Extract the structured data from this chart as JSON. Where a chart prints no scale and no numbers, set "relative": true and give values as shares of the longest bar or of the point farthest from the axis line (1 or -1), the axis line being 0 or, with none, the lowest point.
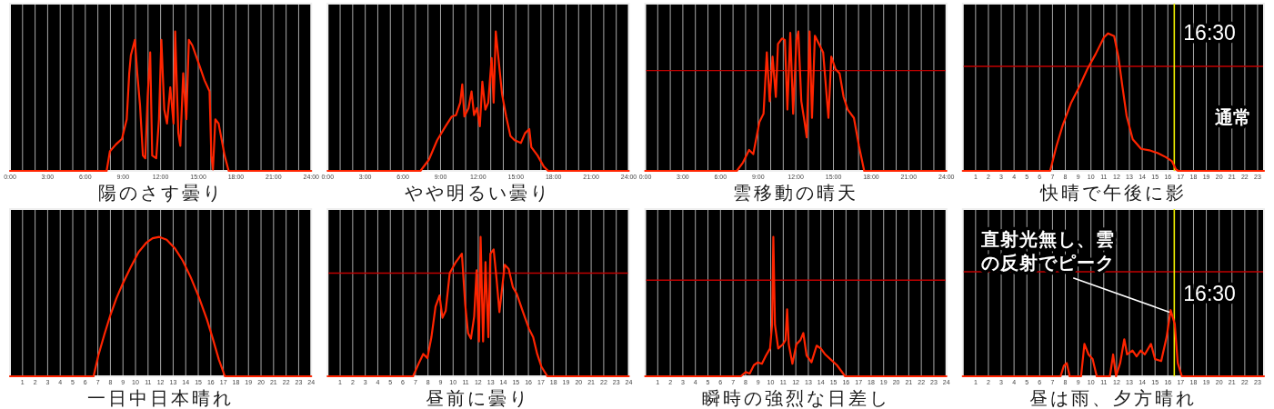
{
  "chart_data": [
    {
      "type": "line",
      "title": "陽のさす曇り",
      "relative": true,
      "color": "#ff2400",
      "x": [
        0,
        7.7,
        7.96,
        8.44,
        8.92,
        9.3,
        9.5,
        9.63,
        9.95,
        10.14,
        10.36,
        10.59,
        10.78,
        10.97,
        11.17,
        11.33,
        11.65,
        11.87,
        12.06,
        12.29,
        12.51,
        12.77,
        13.03,
        13.16,
        13.41,
        13.57,
        13.8,
        14.05,
        14.25,
        14.53,
        15.0,
        15.5,
        15.9,
        16.04,
        16.17,
        16.36,
        16.62,
        17.1,
        17.42,
        24
      ],
      "values": [
        0,
        0,
        0.14,
        0.19,
        0.23,
        0.37,
        0.7,
        0.83,
        0.94,
        0.7,
        0.47,
        0.11,
        0.09,
        0.54,
        0.85,
        0.11,
        0.09,
        0.37,
        0.94,
        0.44,
        0.34,
        0.6,
        0.34,
        1.0,
        0.27,
        0.18,
        0.7,
        0.37,
        0.94,
        0.9,
        0.78,
        0.65,
        0.57,
        0.11,
        0.01,
        0.37,
        0.34,
        0.11,
        0,
        0
      ],
      "xlim": [
        0,
        24
      ],
      "xticks": [
        {
          "value": 0,
          "label": "0:00"
        },
        {
          "value": 1,
          "label": null
        },
        {
          "value": 2,
          "label": null
        },
        {
          "value": 3,
          "label": "3:00"
        },
        {
          "value": 4,
          "label": null
        },
        {
          "value": 5,
          "label": null
        },
        {
          "value": 6,
          "label": "6:00"
        },
        {
          "value": 7,
          "label": null
        },
        {
          "value": 8,
          "label": null
        },
        {
          "value": 9,
          "label": "9:00"
        },
        {
          "value": 10,
          "label": null
        },
        {
          "value": 11,
          "label": null
        },
        {
          "value": 12,
          "label": "12:00"
        },
        {
          "value": 13,
          "label": null
        },
        {
          "value": 14,
          "label": null
        },
        {
          "value": 15,
          "label": "15:00"
        },
        {
          "value": 16,
          "label": null
        },
        {
          "value": 17,
          "label": null
        },
        {
          "value": 18,
          "label": "18:00"
        },
        {
          "value": 19,
          "label": null
        },
        {
          "value": 20,
          "label": null
        },
        {
          "value": 21,
          "label": "21:00"
        },
        {
          "value": 22,
          "label": null
        },
        {
          "value": 23,
          "label": null
        },
        {
          "value": 24,
          "label": "24:00"
        }
      ],
      "tick_labels": "x",
      "grid": "x"
    },
    {
      "type": "line",
      "title": "やや明るい曇り",
      "relative": true,
      "color": "#ff2400",
      "x": [
        0,
        7.4,
        8.07,
        8.73,
        9.4,
        9.9,
        10.23,
        10.57,
        10.73,
        10.9,
        11.23,
        11.47,
        11.67,
        11.9,
        12.13,
        12.33,
        12.57,
        12.8,
        13.07,
        13.23,
        13.4,
        13.6,
        13.9,
        14.23,
        14.57,
        14.9,
        15.4,
        15.73,
        16.07,
        16.23,
        16.73,
        17.23,
        17.57,
        24
      ],
      "values": [
        0,
        0,
        0.08,
        0.22,
        0.32,
        0.39,
        0.4,
        0.49,
        0.62,
        0.39,
        0.45,
        0.57,
        0.4,
        0.45,
        0.32,
        0.64,
        0.44,
        0.49,
        0.81,
        0.49,
        1.0,
        0.82,
        0.55,
        0.39,
        0.25,
        0.22,
        0.2,
        0.27,
        0.3,
        0.17,
        0.11,
        0.03,
        0,
        0
      ],
      "xlim": [
        0,
        24
      ],
      "xticks": [
        {
          "value": 0,
          "label": "0:00"
        },
        {
          "value": 1,
          "label": null
        },
        {
          "value": 2,
          "label": null
        },
        {
          "value": 3,
          "label": "3:00"
        },
        {
          "value": 4,
          "label": null
        },
        {
          "value": 5,
          "label": null
        },
        {
          "value": 6,
          "label": "6:00"
        },
        {
          "value": 7,
          "label": null
        },
        {
          "value": 8,
          "label": null
        },
        {
          "value": 9,
          "label": "9:00"
        },
        {
          "value": 10,
          "label": null
        },
        {
          "value": 11,
          "label": null
        },
        {
          "value": 12,
          "label": "12:00"
        },
        {
          "value": 13,
          "label": null
        },
        {
          "value": 14,
          "label": null
        },
        {
          "value": 15,
          "label": "15:00"
        },
        {
          "value": 16,
          "label": null
        },
        {
          "value": 17,
          "label": null
        },
        {
          "value": 18,
          "label": "18:00"
        },
        {
          "value": 19,
          "label": null
        },
        {
          "value": 20,
          "label": null
        },
        {
          "value": 21,
          "label": "21:00"
        },
        {
          "value": 22,
          "label": null
        },
        {
          "value": 23,
          "label": null
        },
        {
          "value": 24,
          "label": "24:00"
        }
      ],
      "tick_labels": "x",
      "grid": "x"
    },
    {
      "type": "line",
      "title": "雲移動の晴天",
      "relative": true,
      "color": "#ff2400",
      "x": [
        0,
        7.3,
        7.79,
        8.28,
        8.61,
        9.1,
        9.43,
        9.69,
        9.92,
        10.15,
        10.41,
        10.58,
        10.9,
        11.13,
        11.33,
        11.56,
        11.79,
        12.05,
        12.2,
        12.44,
        12.7,
        12.87,
        13.1,
        13.29,
        13.52,
        13.85,
        14.18,
        14.6,
        14.83,
        15.16,
        15.49,
        15.81,
        16.14,
        16.63,
        17.03,
        17.45,
        24
      ],
      "values": [
        0,
        0,
        0.06,
        0.15,
        0.12,
        0.35,
        0.41,
        0.85,
        0.5,
        0.82,
        0.53,
        0.91,
        0.95,
        0.94,
        0.44,
        0.99,
        0.41,
        0.94,
        1.0,
        0.5,
        0.35,
        0.24,
        1.0,
        0.38,
        0.97,
        0.91,
        0.85,
        0.38,
        0.82,
        0.73,
        0.7,
        0.53,
        0.44,
        0.38,
        0.18,
        0,
        0
      ],
      "xlim": [
        0,
        24
      ],
      "xticks": [
        {
          "value": 0,
          "label": "0:00"
        },
        {
          "value": 1,
          "label": null
        },
        {
          "value": 2,
          "label": null
        },
        {
          "value": 3,
          "label": "3:00"
        },
        {
          "value": 4,
          "label": null
        },
        {
          "value": 5,
          "label": null
        },
        {
          "value": 6,
          "label": "6:00"
        },
        {
          "value": 7,
          "label": null
        },
        {
          "value": 8,
          "label": null
        },
        {
          "value": 9,
          "label": "9:00"
        },
        {
          "value": 10,
          "label": null
        },
        {
          "value": 11,
          "label": null
        },
        {
          "value": 12,
          "label": "12:00"
        },
        {
          "value": 13,
          "label": null
        },
        {
          "value": 14,
          "label": null
        },
        {
          "value": 15,
          "label": "15:00"
        },
        {
          "value": 16,
          "label": null
        },
        {
          "value": 17,
          "label": null
        },
        {
          "value": 18,
          "label": "18:00"
        },
        {
          "value": 19,
          "label": null
        },
        {
          "value": 20,
          "label": null
        },
        {
          "value": 21,
          "label": "21:00"
        },
        {
          "value": 22,
          "label": null
        },
        {
          "value": 23,
          "label": null
        },
        {
          "value": 24,
          "label": "24:00"
        }
      ],
      "tick_labels": "x",
      "grid": "x",
      "ref_lines": [
        {
          "axis": "y",
          "value": 0.72,
          "color": "#c00000"
        }
      ]
    },
    {
      "type": "line",
      "title": "快晴で午後に影",
      "relative": true,
      "color": "#ff2400",
      "x": [
        0,
        6.82,
        7.31,
        7.79,
        8.43,
        9.08,
        9.72,
        10.37,
        11.01,
        11.33,
        11.81,
        12.14,
        12.46,
        12.78,
        13.26,
        13.91,
        14.55,
        15.19,
        15.84,
        16.32,
        16.64,
        16.8,
        23.5
      ],
      "values": [
        0,
        0,
        0.18,
        0.33,
        0.49,
        0.61,
        0.74,
        0.85,
        0.97,
        1.0,
        0.98,
        0.83,
        0.61,
        0.4,
        0.23,
        0.16,
        0.15,
        0.13,
        0.1,
        0.07,
        0.01,
        0,
        0
      ],
      "xlim": [
        0,
        23.5
      ],
      "xticks": [
        1,
        2,
        3,
        4,
        5,
        6,
        7,
        8,
        9,
        10,
        11,
        12,
        13,
        14,
        15,
        16,
        17,
        18,
        19,
        20,
        21,
        22,
        23
      ],
      "tick_labels": "x",
      "grid": "x",
      "ref_lines": [
        {
          "axis": "y",
          "value": 0.76,
          "color": "#c00000"
        },
        {
          "axis": "x",
          "value": 16.5,
          "label": "16:30",
          "color": "#f0f000"
        }
      ],
      "annotations": [
        "通常"
      ]
    },
    {
      "type": "line",
      "title": "一日中日本晴れ",
      "relative": true,
      "color": "#ff2400",
      "x": [
        0,
        6.66,
        7.04,
        7.52,
        8.0,
        8.48,
        8.96,
        9.6,
        10.24,
        10.88,
        11.36,
        11.9,
        12.48,
        13.12,
        13.76,
        14.4,
        15.04,
        15.68,
        16.16,
        16.64,
        17.12,
        24
      ],
      "values": [
        0,
        0,
        0.15,
        0.3,
        0.44,
        0.56,
        0.66,
        0.78,
        0.89,
        0.96,
        0.99,
        1.0,
        0.98,
        0.92,
        0.83,
        0.71,
        0.57,
        0.41,
        0.27,
        0.12,
        0,
        0
      ],
      "xlim": [
        0,
        24
      ],
      "xticks": [
        1,
        2,
        3,
        4,
        5,
        6,
        7,
        8,
        9,
        10,
        11,
        12,
        13,
        14,
        15,
        16,
        17,
        18,
        19,
        20,
        21,
        22,
        23,
        24
      ],
      "tick_labels": "x",
      "grid": "x"
    },
    {
      "type": "line",
      "title": "昼前に曇り",
      "relative": true,
      "color": "#ff2400",
      "x": [
        0,
        6.81,
        7.3,
        7.62,
        7.95,
        8.27,
        8.6,
        8.92,
        9.15,
        9.41,
        9.73,
        10.22,
        10.7,
        10.96,
        11.19,
        11.42,
        11.68,
        11.87,
        12.06,
        12.19,
        12.39,
        12.58,
        12.81,
        12.97,
        13.23,
        13.46,
        13.69,
        13.95,
        14.11,
        14.43,
        14.76,
        15.08,
        15.57,
        16.05,
        16.38,
        16.7,
        17.03,
        17.51,
        24
      ],
      "values": [
        0,
        0,
        0.1,
        0.16,
        0.13,
        0.28,
        0.5,
        0.58,
        0.42,
        0.47,
        0.74,
        0.82,
        0.88,
        0.52,
        0.31,
        0.27,
        0.43,
        0.76,
        0.25,
        1.0,
        0.25,
        0.82,
        0.28,
        0.88,
        0.91,
        0.7,
        0.46,
        0.67,
        0.8,
        0.77,
        0.64,
        0.59,
        0.46,
        0.34,
        0.28,
        0.16,
        0.07,
        0,
        0
      ],
      "xlim": [
        0,
        24
      ],
      "xticks": [
        1,
        2,
        3,
        4,
        5,
        6,
        7,
        8,
        9,
        10,
        11,
        12,
        13,
        14,
        15,
        16,
        17,
        18,
        19,
        20,
        21,
        22,
        23,
        24
      ],
      "tick_labels": "x",
      "grid": "x",
      "ref_lines": [
        {
          "axis": "y",
          "value": 0.74,
          "color": "#c00000"
        }
      ]
    },
    {
      "type": "line",
      "title": "瞬時の強烈な日差し",
      "relative": true,
      "color": "#ff2400",
      "x": [
        0,
        7.62,
        8.01,
        8.33,
        8.66,
        8.98,
        9.3,
        9.63,
        9.95,
        10.11,
        10.21,
        10.34,
        10.6,
        10.98,
        11.18,
        11.31,
        11.44,
        11.73,
        12.05,
        12.37,
        12.6,
        12.86,
        13.25,
        13.66,
        13.99,
        14.31,
        14.79,
        15.28,
        15.93,
        24
      ],
      "values": [
        0,
        0,
        0.03,
        0.02,
        0.08,
        0.1,
        0.09,
        0.15,
        0.2,
        0.37,
        1.0,
        0.37,
        0.2,
        0.23,
        0.26,
        0.48,
        0.23,
        0.09,
        0.23,
        0.26,
        0.31,
        0.15,
        0.1,
        0.22,
        0.2,
        0.16,
        0.12,
        0.08,
        0,
        0
      ],
      "xlim": [
        0,
        24
      ],
      "xticks": [
        1,
        2,
        3,
        4,
        5,
        6,
        7,
        8,
        9,
        10,
        11,
        12,
        13,
        14,
        15,
        16,
        17,
        18,
        19,
        20,
        21,
        22,
        23,
        24
      ],
      "tick_labels": "x",
      "grid": "x",
      "ref_lines": [
        {
          "axis": "y",
          "value": 0.69,
          "color": "#c00000"
        }
      ]
    },
    {
      "type": "line",
      "title": "昼は雨、夕方晴れ",
      "relative": true,
      "color": "#ff2400",
      "x": [
        0,
        7.63,
        7.89,
        8.11,
        8.34,
        9.23,
        9.49,
        9.81,
        10.13,
        10.45,
        11.48,
        11.73,
        11.96,
        12.28,
        12.6,
        12.82,
        13.24,
        13.56,
        13.88,
        14.2,
        14.68,
        15.0,
        15.48,
        15.9,
        16.22,
        16.54,
        16.77,
        17.09,
        23.5
      ],
      "values": [
        0,
        0,
        0.16,
        0.2,
        0,
        0,
        0.49,
        0.33,
        0.26,
        0,
        0,
        0.33,
        0,
        0.2,
        0.56,
        0.33,
        0.39,
        0.3,
        0.39,
        0.33,
        0.49,
        0.26,
        0.23,
        0.59,
        1.0,
        0.79,
        0.2,
        0,
        0
      ],
      "xlim": [
        0,
        23.5
      ],
      "xticks": [
        1,
        2,
        3,
        4,
        5,
        6,
        7,
        8,
        9,
        10,
        11,
        12,
        13,
        14,
        15,
        16,
        17,
        18,
        19,
        20,
        21,
        22,
        23
      ],
      "tick_labels": "x",
      "grid": "x",
      "ref_lines": [
        {
          "axis": "y",
          "value": 1.58,
          "color": "#c00000"
        },
        {
          "axis": "x",
          "value": 16.5,
          "label": "16:30",
          "color": "#f0f000"
        }
      ],
      "annotations": [
        {
          "text": "直射光無し、雲の反射でピーク",
          "x": 16.22,
          "y": 1.0
        }
      ]
    }
  ]
}
